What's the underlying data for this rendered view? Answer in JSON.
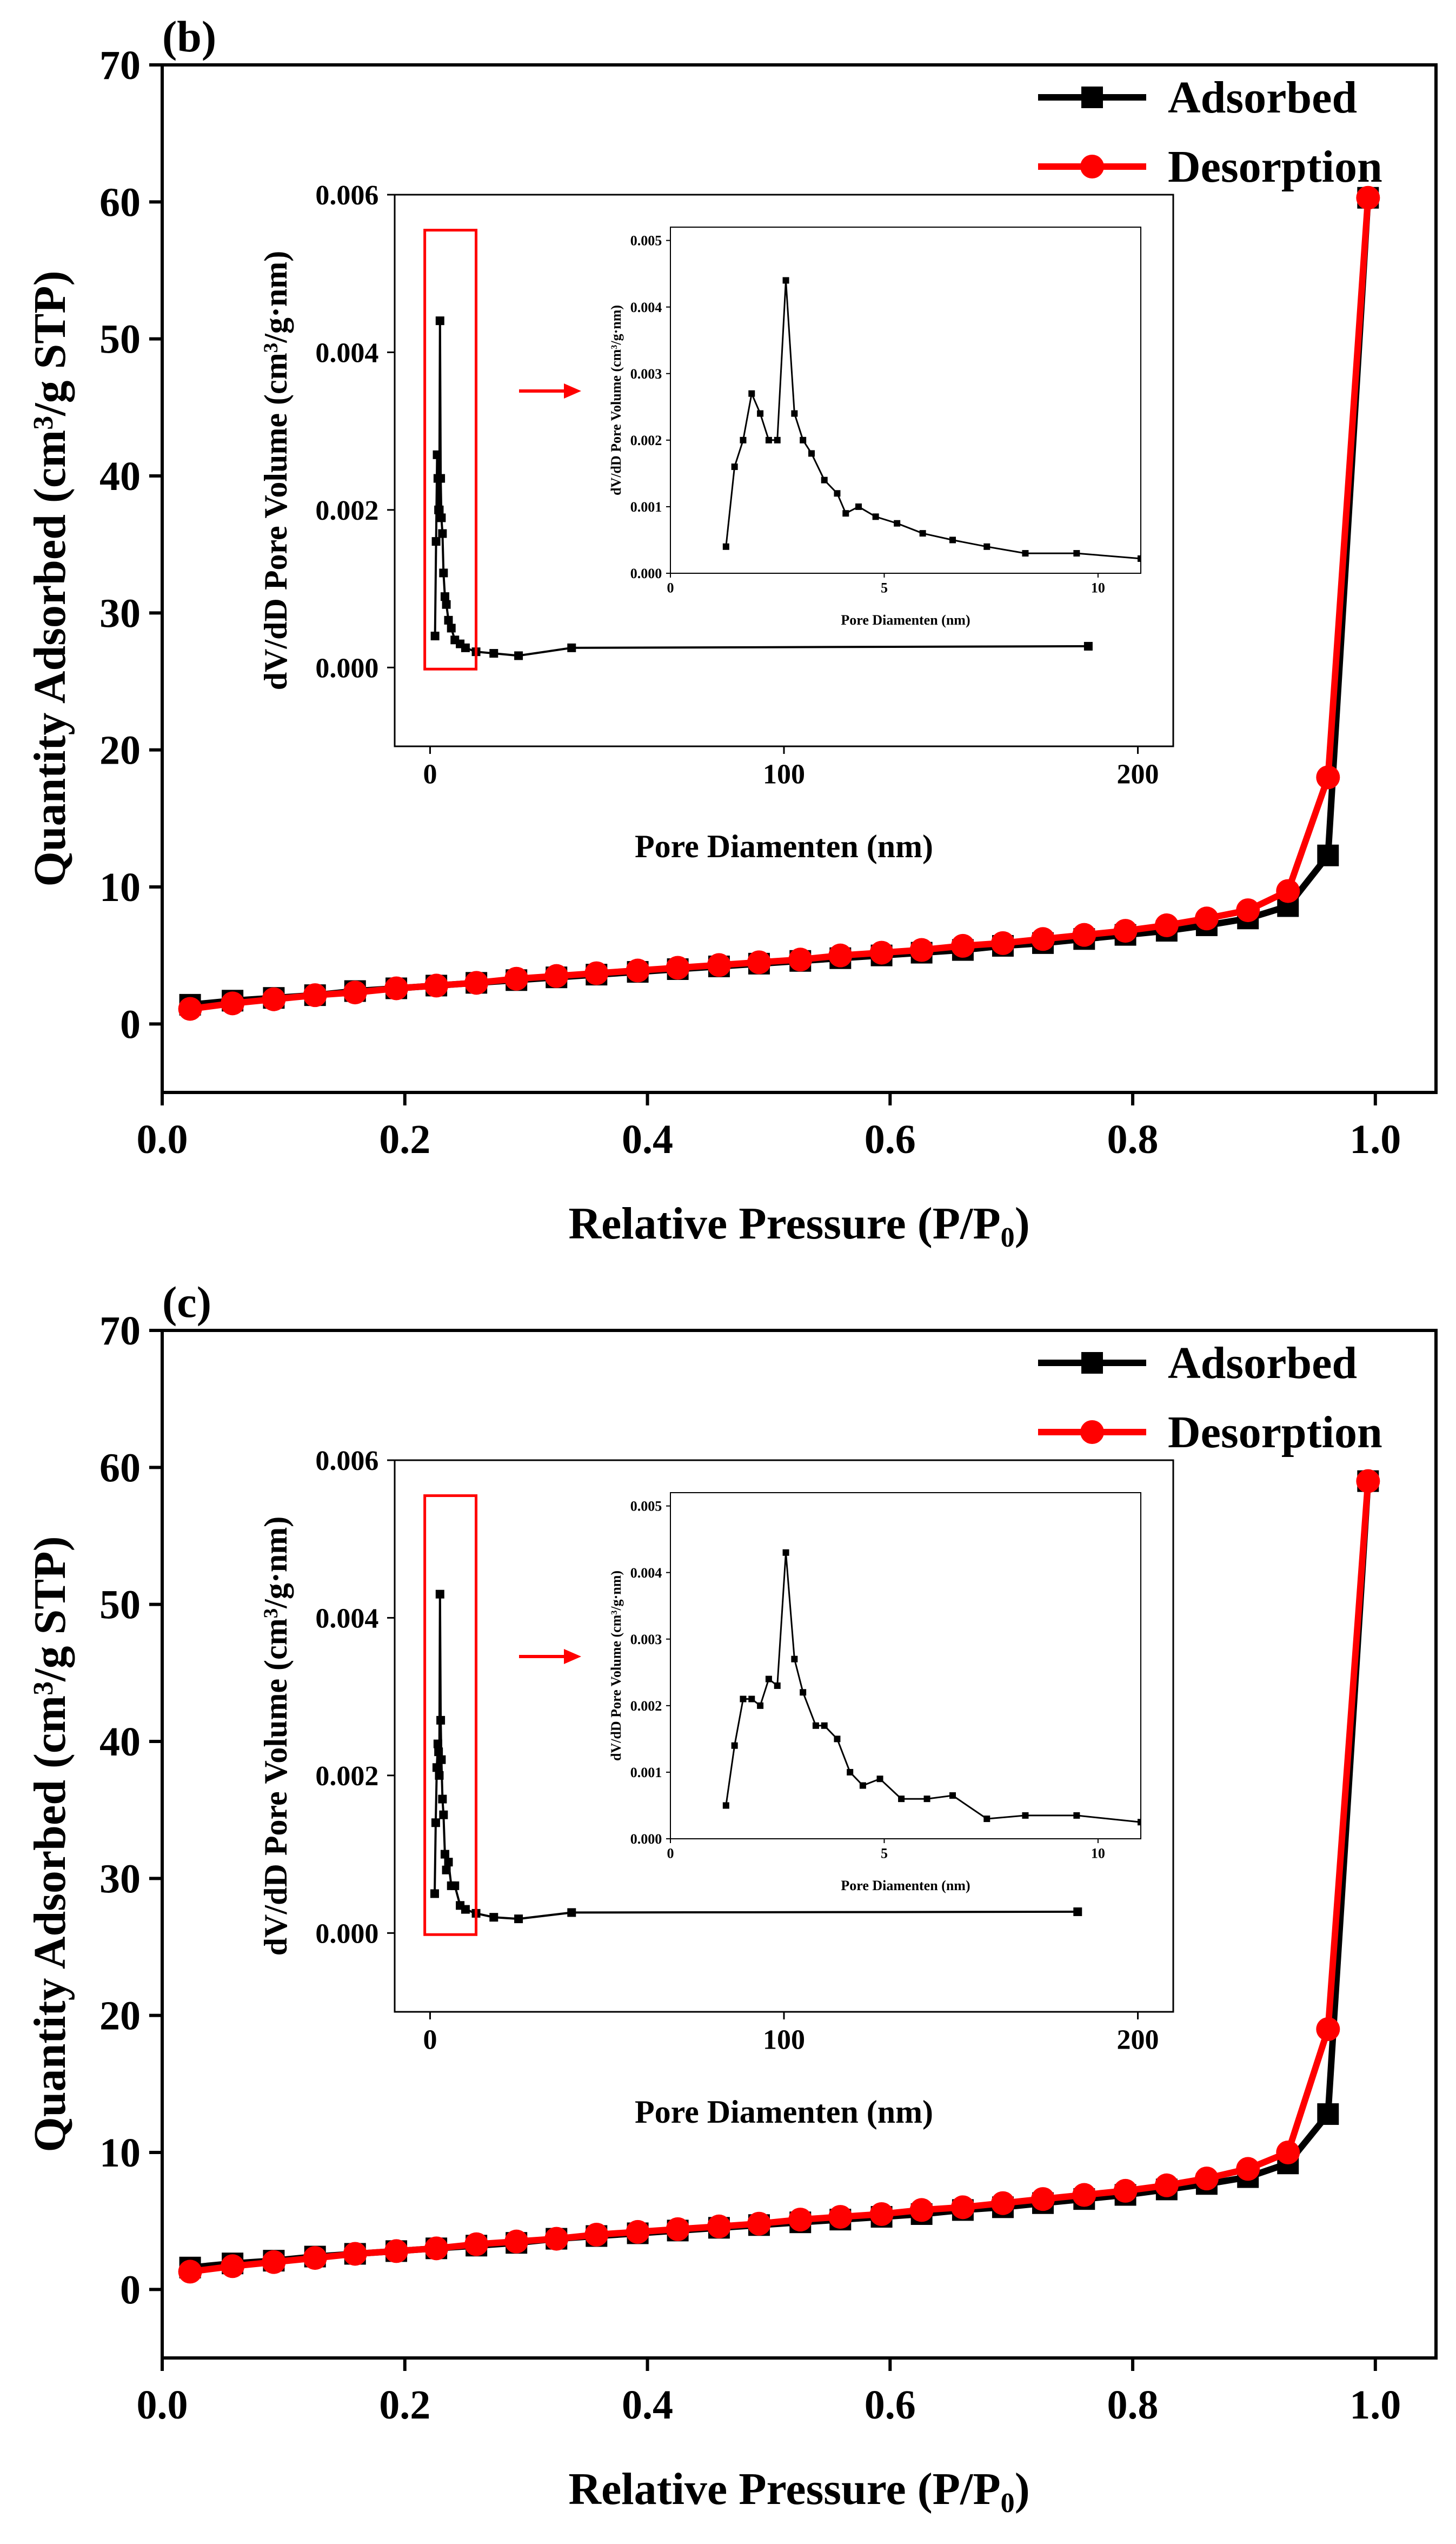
{
  "colors": {
    "adsorbed": "#000000",
    "desorption": "#ff0000",
    "axis": "#000000",
    "highlight": "#ff0000"
  },
  "chart_data": [
    {
      "panel": "(b)",
      "type": "line",
      "xlabel": "Relative Pressure (P/P₀)",
      "xlabel_main": "Relative Pressure (P/P",
      "xlabel_sub": "0",
      "xlabel_close": ")",
      "ylabel": "Quantity Adsorbed (cm³/g STP)",
      "ylabel_pre": "Quantity Adsorbed (cm",
      "ylabel_sup": "3",
      "ylabel_post": "/g STP)",
      "xlim": [
        0.0,
        1.05
      ],
      "ylim": [
        -5,
        70
      ],
      "xticks": [
        "0.0",
        "0.2",
        "0.4",
        "0.6",
        "0.8",
        "1.0"
      ],
      "yticks": [
        "0",
        "10",
        "20",
        "30",
        "40",
        "50",
        "60",
        "70"
      ],
      "legend": "top-right",
      "series": [
        {
          "name": "Adsorbed",
          "marker": "square",
          "x": [
            0.023,
            0.058,
            0.092,
            0.126,
            0.159,
            0.193,
            0.226,
            0.259,
            0.292,
            0.325,
            0.358,
            0.392,
            0.425,
            0.459,
            0.492,
            0.526,
            0.559,
            0.593,
            0.626,
            0.66,
            0.693,
            0.726,
            0.76,
            0.794,
            0.828,
            0.861,
            0.895,
            0.928,
            0.961,
            0.994
          ],
          "y": [
            1.4,
            1.7,
            1.9,
            2.1,
            2.4,
            2.6,
            2.8,
            3.0,
            3.2,
            3.4,
            3.6,
            3.8,
            4.0,
            4.2,
            4.4,
            4.6,
            4.8,
            5.0,
            5.2,
            5.4,
            5.7,
            5.9,
            6.2,
            6.5,
            6.8,
            7.2,
            7.7,
            8.6,
            12.3,
            60.3
          ]
        },
        {
          "name": "Desorption",
          "marker": "circle",
          "x": [
            0.023,
            0.058,
            0.092,
            0.126,
            0.159,
            0.193,
            0.226,
            0.259,
            0.292,
            0.325,
            0.358,
            0.392,
            0.425,
            0.459,
            0.492,
            0.526,
            0.559,
            0.593,
            0.626,
            0.66,
            0.693,
            0.726,
            0.76,
            0.794,
            0.828,
            0.861,
            0.895,
            0.928,
            0.961,
            0.994
          ],
          "y": [
            1.1,
            1.5,
            1.8,
            2.1,
            2.3,
            2.6,
            2.8,
            3.0,
            3.3,
            3.5,
            3.7,
            3.9,
            4.1,
            4.3,
            4.5,
            4.7,
            5.0,
            5.2,
            5.4,
            5.7,
            5.9,
            6.2,
            6.5,
            6.8,
            7.2,
            7.7,
            8.3,
            9.7,
            18.0,
            60.3
          ]
        }
      ],
      "inset": {
        "type": "line",
        "xlabel": "Pore Diamenten (nm)",
        "ylabel": "dV/dD Pore Volume (cm³/g·nm)",
        "ylabel_pre": "dV/dD Pore Volume (cm",
        "ylabel_sup": "3",
        "ylabel_post": "/g·nm)",
        "xlim": [
          -10,
          210
        ],
        "ylim": [
          -0.001,
          0.006
        ],
        "xticks": [
          "0",
          "100",
          "200"
        ],
        "yticks": [
          "0.000",
          "0.002",
          "0.004",
          "0.006"
        ],
        "x": [
          1.4,
          1.7,
          2.0,
          2.2,
          2.4,
          2.6,
          2.8,
          3.0,
          3.2,
          3.5,
          3.8,
          4.2,
          4.6,
          5.2,
          6.0,
          7.0,
          8.5,
          10.0,
          13.0,
          18.0,
          25.0,
          40.0,
          186.0
        ],
        "y": [
          0.0004,
          0.0016,
          0.0027,
          0.0024,
          0.002,
          0.002,
          0.0044,
          0.0024,
          0.0019,
          0.0017,
          0.0012,
          0.0009,
          0.0008,
          0.0006,
          0.0005,
          0.00035,
          0.0003,
          0.00025,
          0.0002,
          0.00018,
          0.00015,
          0.00025,
          0.00027
        ]
      },
      "zoom": {
        "type": "line",
        "xlabel": "Pore Diamenten (nm)",
        "ylabel": "dV/dD Pore Volume (cm³/g·nm)",
        "ylabel_pre": "dV/dD Pore Volume (cm",
        "ylabel_sup": "3",
        "ylabel_post": "/g·nm)",
        "xlim": [
          0,
          11
        ],
        "ylim": [
          0,
          0.0052
        ],
        "xticks": [
          "0",
          "5",
          "10"
        ],
        "yticks": [
          "0.000",
          "0.001",
          "0.002",
          "0.003",
          "0.004",
          "0.005"
        ],
        "x": [
          1.3,
          1.5,
          1.7,
          1.9,
          2.1,
          2.3,
          2.5,
          2.7,
          2.9,
          3.1,
          3.3,
          3.6,
          3.9,
          4.1,
          4.4,
          4.8,
          5.3,
          5.9,
          6.6,
          7.4,
          8.3,
          9.5,
          11.0
        ],
        "y": [
          0.0004,
          0.0016,
          0.002,
          0.0027,
          0.0024,
          0.002,
          0.002,
          0.0044,
          0.0024,
          0.002,
          0.0018,
          0.0014,
          0.0012,
          0.0009,
          0.001,
          0.00085,
          0.00075,
          0.0006,
          0.0005,
          0.0004,
          0.0003,
          0.0003,
          0.00022
        ]
      }
    },
    {
      "panel": "(c)",
      "type": "line",
      "xlabel": "Relative Pressure (P/P₀)",
      "xlabel_main": "Relative Pressure (P/P",
      "xlabel_sub": "0",
      "xlabel_close": ")",
      "ylabel": "Quantity Adsorbed (cm³/g STP)",
      "ylabel_pre": "Quantity Adsorbed (cm",
      "ylabel_sup": "3",
      "ylabel_post": "/g STP)",
      "xlim": [
        0.0,
        1.05
      ],
      "ylim": [
        -5,
        70
      ],
      "xticks": [
        "0.0",
        "0.2",
        "0.4",
        "0.6",
        "0.8",
        "1.0"
      ],
      "yticks": [
        "0",
        "10",
        "20",
        "30",
        "40",
        "50",
        "60",
        "70"
      ],
      "legend": "top-right",
      "series": [
        {
          "name": "Adsorbed",
          "marker": "square",
          "x": [
            0.023,
            0.058,
            0.092,
            0.126,
            0.159,
            0.193,
            0.226,
            0.259,
            0.292,
            0.325,
            0.358,
            0.392,
            0.425,
            0.459,
            0.492,
            0.526,
            0.559,
            0.593,
            0.626,
            0.66,
            0.693,
            0.726,
            0.76,
            0.794,
            0.828,
            0.861,
            0.895,
            0.928,
            0.961,
            0.994
          ],
          "y": [
            1.6,
            1.9,
            2.1,
            2.4,
            2.6,
            2.8,
            3.0,
            3.2,
            3.4,
            3.7,
            3.9,
            4.1,
            4.3,
            4.5,
            4.7,
            4.9,
            5.1,
            5.3,
            5.5,
            5.8,
            6.0,
            6.3,
            6.6,
            6.9,
            7.3,
            7.7,
            8.2,
            9.2,
            12.8,
            59.0
          ]
        },
        {
          "name": "Desorption",
          "marker": "circle",
          "x": [
            0.023,
            0.058,
            0.092,
            0.126,
            0.159,
            0.193,
            0.226,
            0.259,
            0.292,
            0.325,
            0.358,
            0.392,
            0.425,
            0.459,
            0.492,
            0.526,
            0.559,
            0.593,
            0.626,
            0.66,
            0.693,
            0.726,
            0.76,
            0.794,
            0.828,
            0.861,
            0.895,
            0.928,
            0.961,
            0.994
          ],
          "y": [
            1.3,
            1.7,
            2.0,
            2.3,
            2.6,
            2.8,
            3.0,
            3.3,
            3.5,
            3.7,
            4.0,
            4.2,
            4.4,
            4.6,
            4.8,
            5.1,
            5.3,
            5.5,
            5.8,
            6.0,
            6.3,
            6.6,
            6.9,
            7.2,
            7.6,
            8.1,
            8.8,
            10.0,
            19.0,
            59.0
          ]
        }
      ],
      "inset": {
        "type": "line",
        "xlabel": "Pore Diamenten (nm)",
        "ylabel": "dV/dD Pore Volume (cm³/g·nm)",
        "ylabel_pre": "dV/dD Pore Volume (cm",
        "ylabel_sup": "3",
        "ylabel_post": "/g·nm)",
        "xlim": [
          -10,
          210
        ],
        "ylim": [
          -0.001,
          0.006
        ],
        "xticks": [
          "0",
          "100",
          "200"
        ],
        "yticks": [
          "0.000",
          "0.002",
          "0.004",
          "0.006"
        ],
        "x": [
          1.3,
          1.6,
          1.9,
          2.2,
          2.4,
          2.6,
          2.8,
          3.0,
          3.2,
          3.5,
          3.8,
          4.2,
          4.6,
          5.2,
          6.0,
          7.0,
          8.5,
          10.0,
          13.0,
          18.0,
          25.0,
          40.0,
          183.0
        ],
        "y": [
          0.0005,
          0.0014,
          0.0021,
          0.0024,
          0.0023,
          0.002,
          0.0043,
          0.0027,
          0.0022,
          0.0017,
          0.0015,
          0.001,
          0.0008,
          0.0009,
          0.0006,
          0.0006,
          0.00035,
          0.0003,
          0.00025,
          0.0002,
          0.00018,
          0.00026,
          0.00027
        ]
      },
      "zoom": {
        "type": "line",
        "xlabel": "Pore Diamenten (nm)",
        "ylabel": "dV/dD Pore Volume (cm³/g·nm)",
        "ylabel_pre": "dV/dD Pore Volume (cm",
        "ylabel_sup": "3",
        "ylabel_post": "/g·nm)",
        "xlim": [
          0,
          11
        ],
        "ylim": [
          0,
          0.0052
        ],
        "xticks": [
          "0",
          "5",
          "10"
        ],
        "yticks": [
          "0.000",
          "0.001",
          "0.002",
          "0.003",
          "0.004",
          "0.005"
        ],
        "x": [
          1.3,
          1.5,
          1.7,
          1.9,
          2.1,
          2.3,
          2.5,
          2.7,
          2.9,
          3.1,
          3.4,
          3.6,
          3.9,
          4.2,
          4.5,
          4.9,
          5.4,
          6.0,
          6.6,
          7.4,
          8.3,
          9.5,
          11.0
        ],
        "y": [
          0.0005,
          0.0014,
          0.0021,
          0.0021,
          0.002,
          0.0024,
          0.0023,
          0.0043,
          0.0027,
          0.0022,
          0.0017,
          0.0017,
          0.0015,
          0.001,
          0.0008,
          0.0009,
          0.0006,
          0.0006,
          0.00065,
          0.0003,
          0.00035,
          0.00035,
          0.00025
        ]
      }
    }
  ]
}
